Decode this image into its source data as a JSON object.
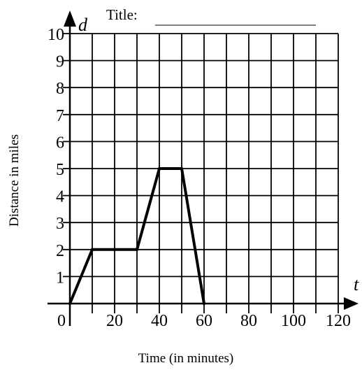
{
  "chart_data": {
    "type": "line",
    "title_prompt": "Title:",
    "xlabel": "Time (in minutes)",
    "ylabel": "Distance in miles",
    "x_var": "t",
    "y_var": "d",
    "xlim": [
      0,
      120
    ],
    "ylim": [
      0,
      10
    ],
    "x_grid_step": 10,
    "y_grid_step": 1,
    "x_ticks": [
      "0",
      "20",
      "40",
      "60",
      "80",
      "100",
      "120"
    ],
    "y_ticks": [
      "1",
      "2",
      "3",
      "4",
      "5",
      "6",
      "7",
      "8",
      "9",
      "10"
    ],
    "grid": true,
    "series": [
      {
        "x": [
          0,
          10,
          30,
          40,
          50,
          60
        ],
        "y": [
          0,
          2,
          2,
          5,
          5,
          0
        ]
      }
    ]
  }
}
